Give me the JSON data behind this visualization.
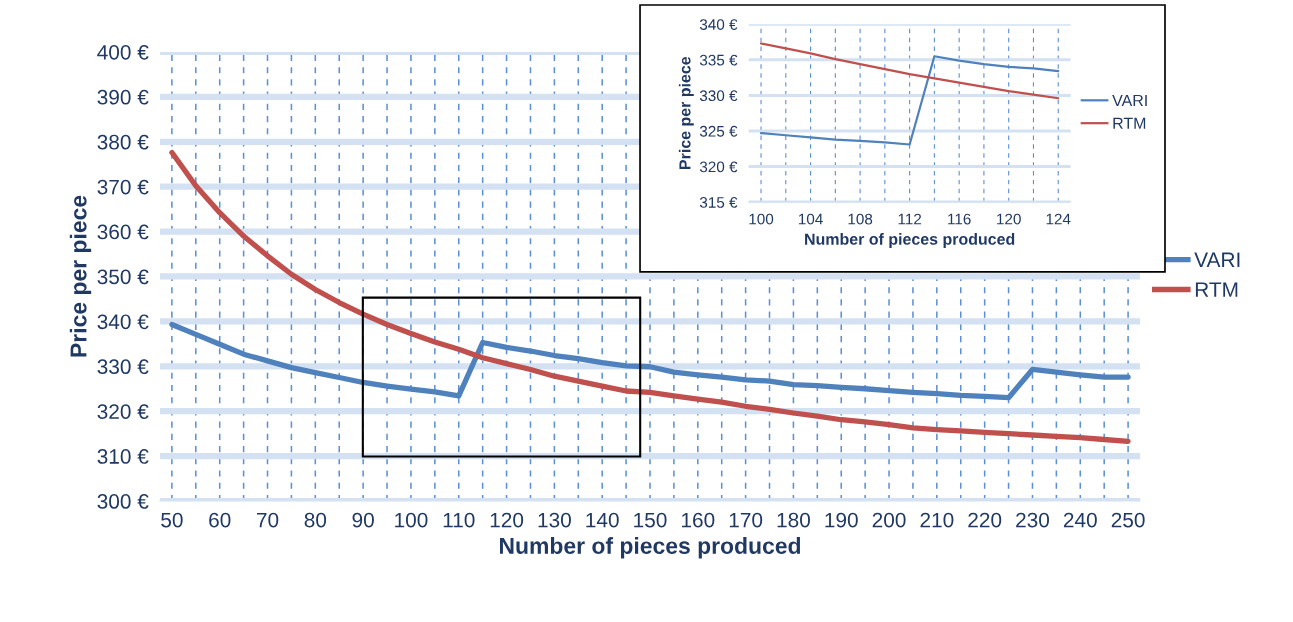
{
  "chart_data": [
    {
      "type": "line",
      "xlabel": "Number of pieces produced",
      "ylabel": "Price per piece",
      "x": [
        50,
        55,
        60,
        65,
        70,
        75,
        80,
        85,
        90,
        95,
        100,
        105,
        110,
        115,
        120,
        125,
        130,
        135,
        140,
        145,
        150,
        155,
        160,
        165,
        170,
        175,
        180,
        185,
        190,
        195,
        200,
        205,
        210,
        215,
        220,
        225,
        230,
        235,
        240,
        245,
        250
      ],
      "series": [
        {
          "name": "VARI",
          "color": "#4f81bd",
          "values": [
            339.3,
            337.1,
            334.9,
            332.7,
            331.2,
            329.7,
            328.6,
            327.5,
            326.4,
            325.6,
            324.9,
            324.3,
            323.4,
            335.3,
            334.2,
            333.4,
            332.4,
            331.7,
            330.8,
            330.1,
            329.9,
            328.7,
            328.1,
            327.6,
            327.0,
            326.7,
            325.9,
            325.7,
            325.3,
            325.0,
            324.6,
            324.2,
            323.9,
            323.5,
            323.3,
            323.0,
            329.3,
            328.7,
            328.1,
            327.6,
            327.6
          ]
        },
        {
          "name": "RTM",
          "color": "#c0504d",
          "values": [
            377.6,
            370.2,
            364.2,
            359.0,
            354.6,
            350.5,
            347.1,
            344.2,
            341.6,
            339.3,
            337.3,
            335.4,
            333.8,
            331.9,
            330.6,
            329.3,
            327.8,
            326.7,
            325.6,
            324.5,
            324.2,
            323.4,
            322.7,
            322.0,
            321.1,
            320.4,
            319.6,
            318.9,
            318.1,
            317.6,
            317.0,
            316.3,
            315.9,
            315.6,
            315.3,
            315.0,
            314.7,
            314.4,
            314.1,
            313.7,
            313.3
          ]
        }
      ],
      "xlim": [
        47.5,
        252.5
      ],
      "xticks": [
        50,
        {
          "value": 55,
          "label": null
        },
        60,
        {
          "value": 65,
          "label": null
        },
        70,
        {
          "value": 75,
          "label": null
        },
        80,
        {
          "value": 85,
          "label": null
        },
        90,
        {
          "value": 95,
          "label": null
        },
        100,
        {
          "value": 105,
          "label": null
        },
        110,
        {
          "value": 115,
          "label": null
        },
        120,
        {
          "value": 125,
          "label": null
        },
        130,
        {
          "value": 135,
          "label": null
        },
        140,
        {
          "value": 145,
          "label": null
        },
        150,
        {
          "value": 155,
          "label": null
        },
        160,
        {
          "value": 165,
          "label": null
        },
        170,
        {
          "value": 175,
          "label": null
        },
        180,
        {
          "value": 185,
          "label": null
        },
        190,
        {
          "value": 195,
          "label": null
        },
        200,
        {
          "value": 205,
          "label": null
        },
        210,
        {
          "value": 215,
          "label": null
        },
        220,
        {
          "value": 225,
          "label": null
        },
        230,
        {
          "value": 235,
          "label": null
        },
        240,
        {
          "value": 245,
          "label": null
        },
        250
      ],
      "ylim": [
        300,
        400
      ],
      "yticks": [
        {
          "value": 300,
          "label": "300 €"
        },
        {
          "value": 310,
          "label": "310 €"
        },
        {
          "value": 320,
          "label": "320 €"
        },
        {
          "value": 330,
          "label": "330 €"
        },
        {
          "value": 340,
          "label": "340 €"
        },
        {
          "value": 350,
          "label": "350 €"
        },
        {
          "value": 360,
          "label": "360 €"
        },
        {
          "value": 370,
          "label": "370 €"
        },
        {
          "value": 380,
          "label": "380 €"
        },
        {
          "value": 390,
          "label": "390 €"
        },
        {
          "value": 400,
          "label": "400 €"
        }
      ],
      "grid": true,
      "legend": "right"
    },
    {
      "type": "line",
      "xlabel": "Number of pieces produced",
      "ylabel": "Price per piece",
      "x": [
        100,
        102,
        104,
        106,
        108,
        110,
        112,
        114,
        116,
        118,
        120,
        122,
        124
      ],
      "series": [
        {
          "name": "VARI",
          "color": "#4f81bd",
          "values": [
            324.7,
            324.4,
            324.1,
            323.8,
            323.6,
            323.4,
            323.1,
            335.5,
            334.9,
            334.4,
            334.0,
            333.8,
            333.4
          ]
        },
        {
          "name": "RTM",
          "color": "#c0504d",
          "values": [
            337.3,
            336.6,
            335.9,
            335.1,
            334.4,
            333.7,
            333.0,
            332.4,
            331.8,
            331.2,
            330.6,
            330.1,
            329.6
          ]
        }
      ],
      "xlim": [
        99,
        125
      ],
      "xticks": [
        100,
        {
          "value": 102,
          "label": null
        },
        104,
        {
          "value": 106,
          "label": null
        },
        108,
        {
          "value": 110,
          "label": null
        },
        112,
        {
          "value": 114,
          "label": null
        },
        116,
        {
          "value": 118,
          "label": null
        },
        120,
        {
          "value": 122,
          "label": null
        },
        124
      ],
      "ylim": [
        315,
        340
      ],
      "yticks": [
        {
          "value": 315,
          "label": "315 €"
        },
        {
          "value": 320,
          "label": "320 €"
        },
        {
          "value": 325,
          "label": "325 €"
        },
        {
          "value": 330,
          "label": "330 €"
        },
        {
          "value": 335,
          "label": "335 €"
        },
        {
          "value": 340,
          "label": "340 €"
        }
      ],
      "grid": true,
      "legend": "right"
    }
  ]
}
